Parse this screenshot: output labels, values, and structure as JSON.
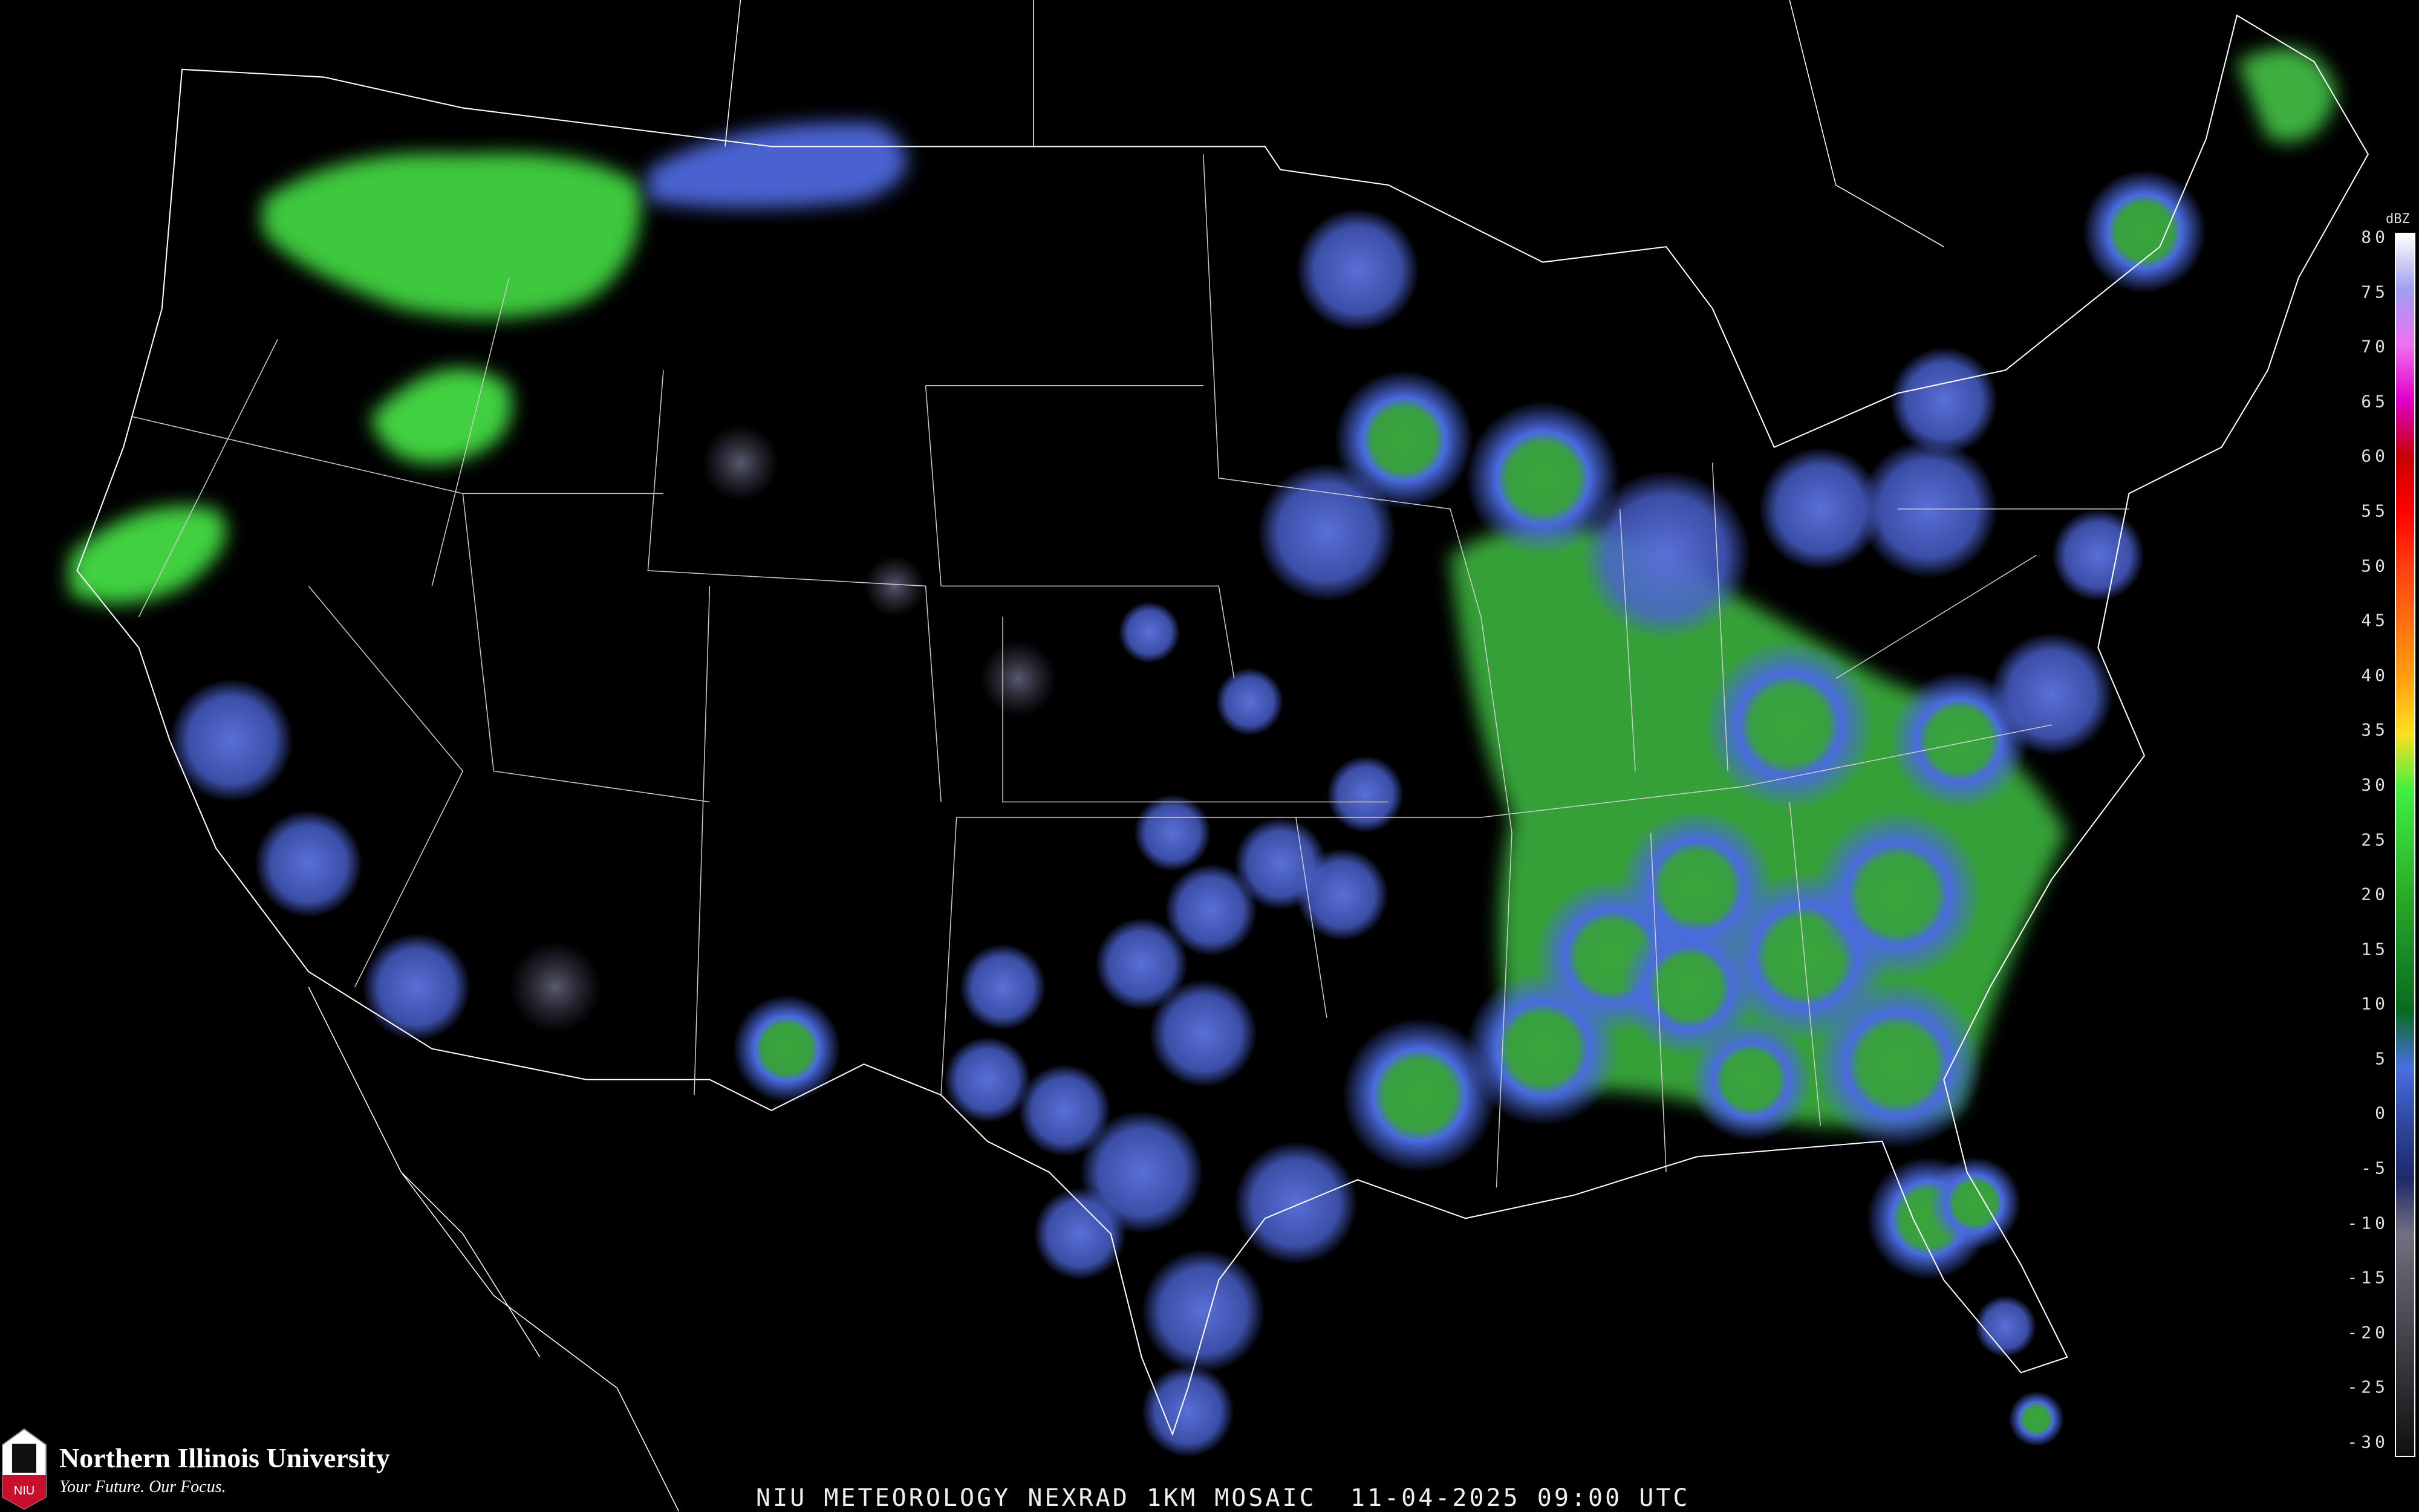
{
  "title": "NIU METEOROLOGY NEXRAD 1KM MOSAIC  11-04-2025 09:00 UTC",
  "logo": {
    "name": "Northern Illinois University",
    "tagline": "Your Future. Our Focus.",
    "mark": "NIU"
  },
  "legend": {
    "unit": "dBZ",
    "ticks": [
      "80",
      "75",
      "70",
      "65",
      "60",
      "55",
      "50",
      "45",
      "40",
      "35",
      "30",
      "25",
      "20",
      "15",
      "10",
      "5",
      "0",
      "-5",
      "-10",
      "-15",
      "-20",
      "-25",
      "-30"
    ],
    "colors": [
      {
        "dbz": 80,
        "color": "#ffffff"
      },
      {
        "dbz": 75,
        "color": "#a0a0f0"
      },
      {
        "dbz": 70,
        "color": "#f070f0"
      },
      {
        "dbz": 65,
        "color": "#e000c8"
      },
      {
        "dbz": 60,
        "color": "#c80000"
      },
      {
        "dbz": 55,
        "color": "#ff0000"
      },
      {
        "dbz": 50,
        "color": "#ff4010"
      },
      {
        "dbz": 45,
        "color": "#ff7010"
      },
      {
        "dbz": 40,
        "color": "#ffa010"
      },
      {
        "dbz": 35,
        "color": "#ffe020"
      },
      {
        "dbz": 30,
        "color": "#40f040"
      },
      {
        "dbz": 20,
        "color": "#28a828"
      },
      {
        "dbz": 10,
        "color": "#0a6a20"
      },
      {
        "dbz": 5,
        "color": "#4a70e0"
      },
      {
        "dbz": 0,
        "color": "#3048a0"
      },
      {
        "dbz": -5,
        "color": "#202868"
      },
      {
        "dbz": -10,
        "color": "#707080"
      },
      {
        "dbz": -30,
        "color": "#101010"
      }
    ]
  }
}
